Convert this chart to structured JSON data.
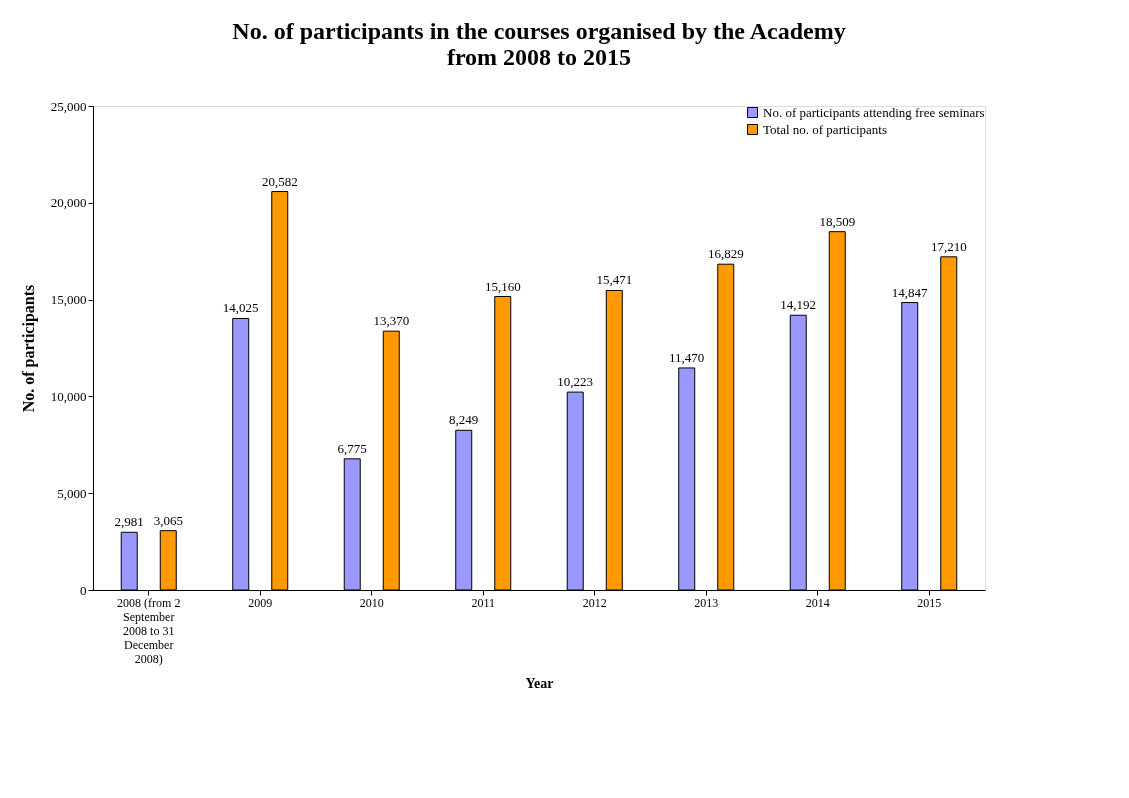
{
  "chart_data": {
    "type": "bar",
    "title": [
      "No. of participants in the courses organised by the Academy",
      "from 2008 to 2015"
    ],
    "xlabel": "Year",
    "ylabel": "No. of participants",
    "categories": [
      "2008 (from 2 September 2008 to 31 December 2008)",
      "2009",
      "2010",
      "2011",
      "2012",
      "2013",
      "2014",
      "2015"
    ],
    "series": [
      {
        "name": "No. of participants attending free seminars",
        "color": "#9999ff",
        "values": [
          2981,
          14025,
          6775,
          8249,
          10223,
          11470,
          14192,
          14847
        ],
        "value_labels": [
          "2,981",
          "14,025",
          "6,775",
          "8,249",
          "10,223",
          "11,470",
          "14,192",
          "14,847"
        ]
      },
      {
        "name": "Total no. of participants",
        "color": "#ff9900",
        "values": [
          3065,
          20582,
          13370,
          15160,
          15471,
          16829,
          18509,
          17210
        ],
        "value_labels": [
          "3,065",
          "20,582",
          "13,370",
          "15,160",
          "15,471",
          "16,829",
          "18,509",
          "17,210"
        ]
      }
    ],
    "ylim": [
      0,
      25000
    ],
    "yticks": [
      0,
      {
        "value": 5000,
        "label": "5,000"
      },
      {
        "value": 10000,
        "label": "10,000"
      },
      {
        "value": 15000,
        "label": "15,000"
      },
      {
        "value": 20000,
        "label": "20,000"
      },
      {
        "value": 25000,
        "label": "25,000"
      }
    ],
    "grid": false,
    "legend": "top right"
  }
}
